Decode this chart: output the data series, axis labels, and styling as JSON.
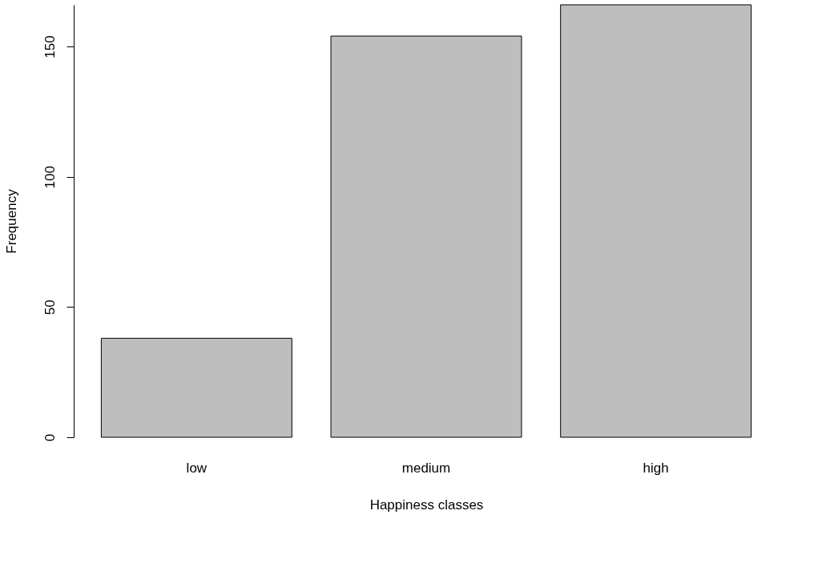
{
  "chart_data": {
    "type": "bar",
    "xlabel": "Happiness classes",
    "ylabel": "Frequency",
    "categories": [
      "low",
      "medium",
      "high"
    ],
    "values": [
      38,
      154,
      166
    ],
    "color": "#bebebe",
    "ylim": [
      0,
      166
    ],
    "yticks": [
      0,
      50,
      100,
      150
    ],
    "grid": false
  }
}
